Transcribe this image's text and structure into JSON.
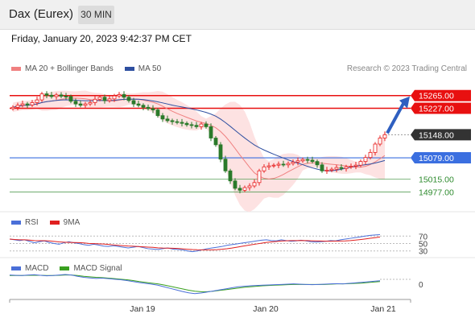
{
  "header": {
    "title": "Dax (Eurex)",
    "timeframe": "30 MIN"
  },
  "date": "Friday, January 20, 2023 9:42:37 PM CET",
  "legend_main": [
    {
      "label": "MA 20 + Bollinger Bands",
      "color": "#f08080"
    },
    {
      "label": "MA 50",
      "color": "#2e4fa0"
    }
  ],
  "copyright": "Research © 2023 Trading Central",
  "legend_rsi": [
    {
      "label": "RSI",
      "color": "#4a6fd8"
    },
    {
      "label": "9MA",
      "color": "#e02020"
    }
  ],
  "legend_macd": [
    {
      "label": "MACD",
      "color": "#4a6fd8"
    },
    {
      "label": "MACD Signal",
      "color": "#3aa020"
    }
  ],
  "colors": {
    "resistance": "#e81010",
    "pivot": "#3b6fe0",
    "support": "#2e8b2e",
    "last_price": "#333333",
    "bollinger_fill": "#fde2e2",
    "bullish": "#e82020",
    "bearish": "#2a7a2a",
    "arrow": "#2f5fc0"
  },
  "chart_data": {
    "type": "candlestick",
    "price_levels": [
      {
        "label": "15265.00",
        "value": 15265,
        "kind": "resistance"
      },
      {
        "label": "15227.00",
        "value": 15227,
        "kind": "resistance"
      },
      {
        "label": "15148.00",
        "value": 15148,
        "kind": "last"
      },
      {
        "label": "15079.00",
        "value": 15079,
        "kind": "pivot"
      },
      {
        "label": "15015.00",
        "value": 15015,
        "kind": "support"
      },
      {
        "label": "14977.00",
        "value": 14977,
        "kind": "support"
      }
    ],
    "x_ticks": [
      "Jan 19",
      "Jan 20",
      "Jan 21"
    ],
    "close": [
      15230,
      15236,
      15240,
      15237,
      15244,
      15252,
      15270,
      15266,
      15262,
      15267,
      15263,
      15262,
      15248,
      15240,
      15236,
      15240,
      15244,
      15254,
      15260,
      15250,
      15255,
      15264,
      15268,
      15260,
      15250,
      15240,
      15236,
      15230,
      15226,
      15222,
      15205,
      15195,
      15190,
      15187,
      15185,
      15182,
      15178,
      15176,
      15172,
      15180,
      15172,
      15138,
      15118,
      15075,
      15040,
      15010,
      14988,
      14982,
      14990,
      14995,
      15005,
      15040,
      15052,
      15055,
      15057,
      15060,
      15058,
      15062,
      15066,
      15070,
      15074,
      15072,
      15068,
      15058,
      15040,
      15042,
      15045,
      15050,
      15047,
      15052,
      15054,
      15057,
      15068,
      15080,
      15095,
      15120,
      15138,
      15148
    ],
    "rsi": [
      62,
      60,
      58,
      60,
      56,
      52,
      55,
      57,
      53,
      50,
      48,
      52,
      55,
      52,
      50,
      47,
      45,
      48,
      46,
      43,
      42,
      44,
      42,
      40,
      38,
      40,
      42,
      39,
      36,
      35,
      34,
      36,
      38,
      35,
      34,
      33,
      30,
      28,
      30,
      33,
      36,
      38,
      40,
      42,
      45,
      47,
      49,
      51,
      53,
      55,
      57,
      59,
      60,
      58,
      57,
      60,
      58,
      56,
      57,
      59,
      57,
      55,
      54,
      55,
      56,
      58,
      57,
      60,
      62,
      64,
      66,
      68,
      70,
      72,
      73,
      74
    ],
    "rsi_reference": [
      "70",
      "50",
      "30"
    ],
    "macd": [
      35,
      34,
      33,
      35,
      36,
      34,
      32,
      33,
      35,
      37,
      35,
      30,
      26,
      24,
      22,
      23,
      21,
      19,
      17,
      14,
      10,
      6,
      3,
      0,
      -4,
      -10,
      -16,
      -22,
      -28,
      -33,
      -36,
      -34,
      -30,
      -26,
      -22,
      -18,
      -14,
      -10,
      -8,
      -6,
      -5,
      -4,
      -3,
      -2,
      -1,
      0,
      1,
      0,
      -1,
      -2,
      -1,
      0,
      1,
      2,
      1,
      3,
      5,
      7,
      9,
      11,
      13
    ],
    "macd_signal": [
      33,
      33,
      33,
      34,
      34,
      34,
      33,
      33,
      34,
      35,
      35,
      33,
      30,
      28,
      26,
      25,
      23,
      21,
      19,
      17,
      14,
      10,
      7,
      4,
      1,
      -3,
      -8,
      -13,
      -18,
      -23,
      -27,
      -29,
      -29,
      -27,
      -24,
      -21,
      -18,
      -15,
      -12,
      -10,
      -8,
      -6,
      -5,
      -4,
      -3,
      -2,
      -1,
      -1,
      -1,
      -1,
      -1,
      -1,
      0,
      1,
      1,
      2,
      3,
      4,
      6,
      8,
      10
    ],
    "macd_reference": [
      "0"
    ]
  }
}
